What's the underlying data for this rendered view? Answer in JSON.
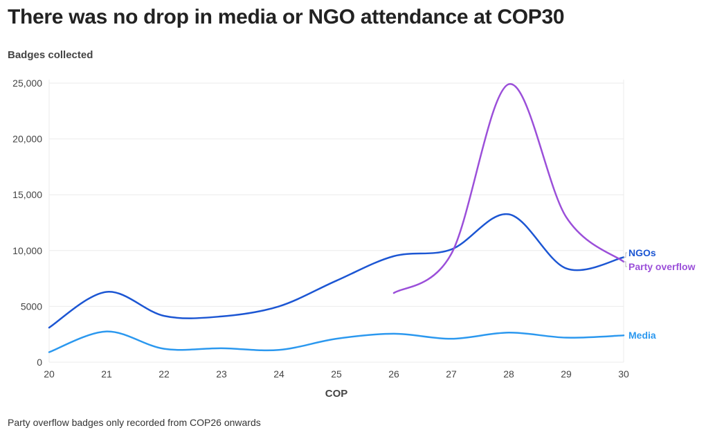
{
  "title": "There was no drop in media or NGO attendance at COP30",
  "subtitle": "Badges collected",
  "note": "Party overflow badges only recorded from COP26 onwards",
  "chart_data": {
    "type": "line",
    "xlabel": "COP",
    "ylabel": "",
    "x": [
      20,
      21,
      22,
      23,
      24,
      25,
      26,
      27,
      28,
      29,
      30
    ],
    "xlim": [
      20,
      30
    ],
    "ylim": [
      0,
      25000
    ],
    "yticks": [
      0,
      5000,
      10000,
      15000,
      20000,
      25000
    ],
    "ytick_labels": [
      "0",
      "5000",
      "10,000",
      "15,000",
      "20,000",
      "25,000"
    ],
    "xtick_labels": [
      "20",
      "21",
      "22",
      "23",
      "24",
      "25",
      "26",
      "27",
      "28",
      "29",
      "30"
    ],
    "grid": true,
    "legend": "direct labels at line ends (right)",
    "series": [
      {
        "name": "NGOs",
        "color": "#1c56d3",
        "values": [
          3100,
          6300,
          4150,
          4100,
          5000,
          7300,
          9500,
          10100,
          13250,
          8400,
          9400
        ]
      },
      {
        "name": "Party overflow",
        "color": "#9b4fd9",
        "values": [
          null,
          null,
          null,
          null,
          null,
          null,
          6200,
          9700,
          24900,
          13000,
          9000
        ]
      },
      {
        "name": "Media",
        "color": "#2b98ef",
        "values": [
          900,
          2750,
          1200,
          1250,
          1100,
          2100,
          2550,
          2100,
          2650,
          2200,
          2400
        ]
      }
    ]
  }
}
